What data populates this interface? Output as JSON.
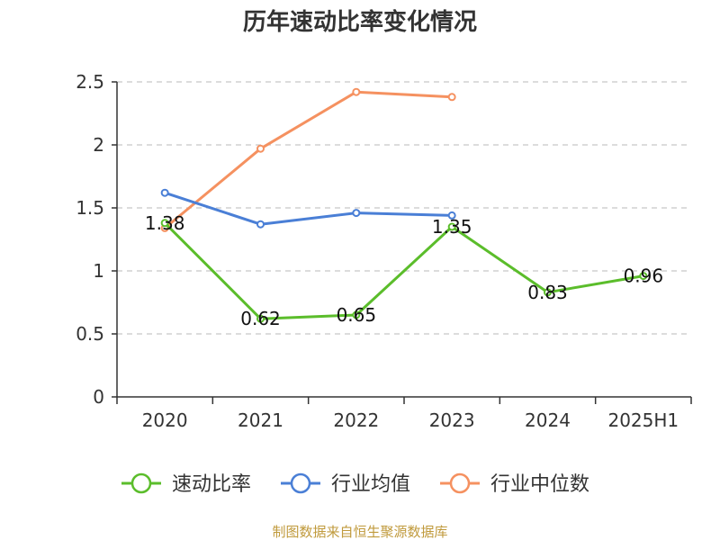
{
  "chart_data": {
    "type": "line",
    "title": "历年速动比率变化情况",
    "categories": [
      "2020",
      "2021",
      "2022",
      "2023",
      "2024",
      "2025H1"
    ],
    "yticks": [
      "0",
      "0.5",
      "1",
      "1.5",
      "2",
      "2.5"
    ],
    "ylim": [
      0,
      2.5
    ],
    "grid": true,
    "legend_placement": "bottom",
    "series": [
      {
        "name": "速动比率",
        "color": "#5bbd2b",
        "values": [
          1.38,
          0.62,
          0.65,
          1.35,
          0.83,
          0.96
        ],
        "labels": [
          "1.38",
          "0.62",
          "0.65",
          "1.35",
          "0.83",
          "0.96"
        ]
      },
      {
        "name": "行业均值",
        "color": "#4a7fd6",
        "values": [
          1.62,
          1.37,
          1.46,
          1.44,
          null,
          null
        ]
      },
      {
        "name": "行业中位数",
        "color": "#f59160",
        "values": [
          1.34,
          1.97,
          2.42,
          2.38,
          null,
          null
        ]
      }
    ],
    "source": "制图数据来自恒生聚源数据库"
  }
}
